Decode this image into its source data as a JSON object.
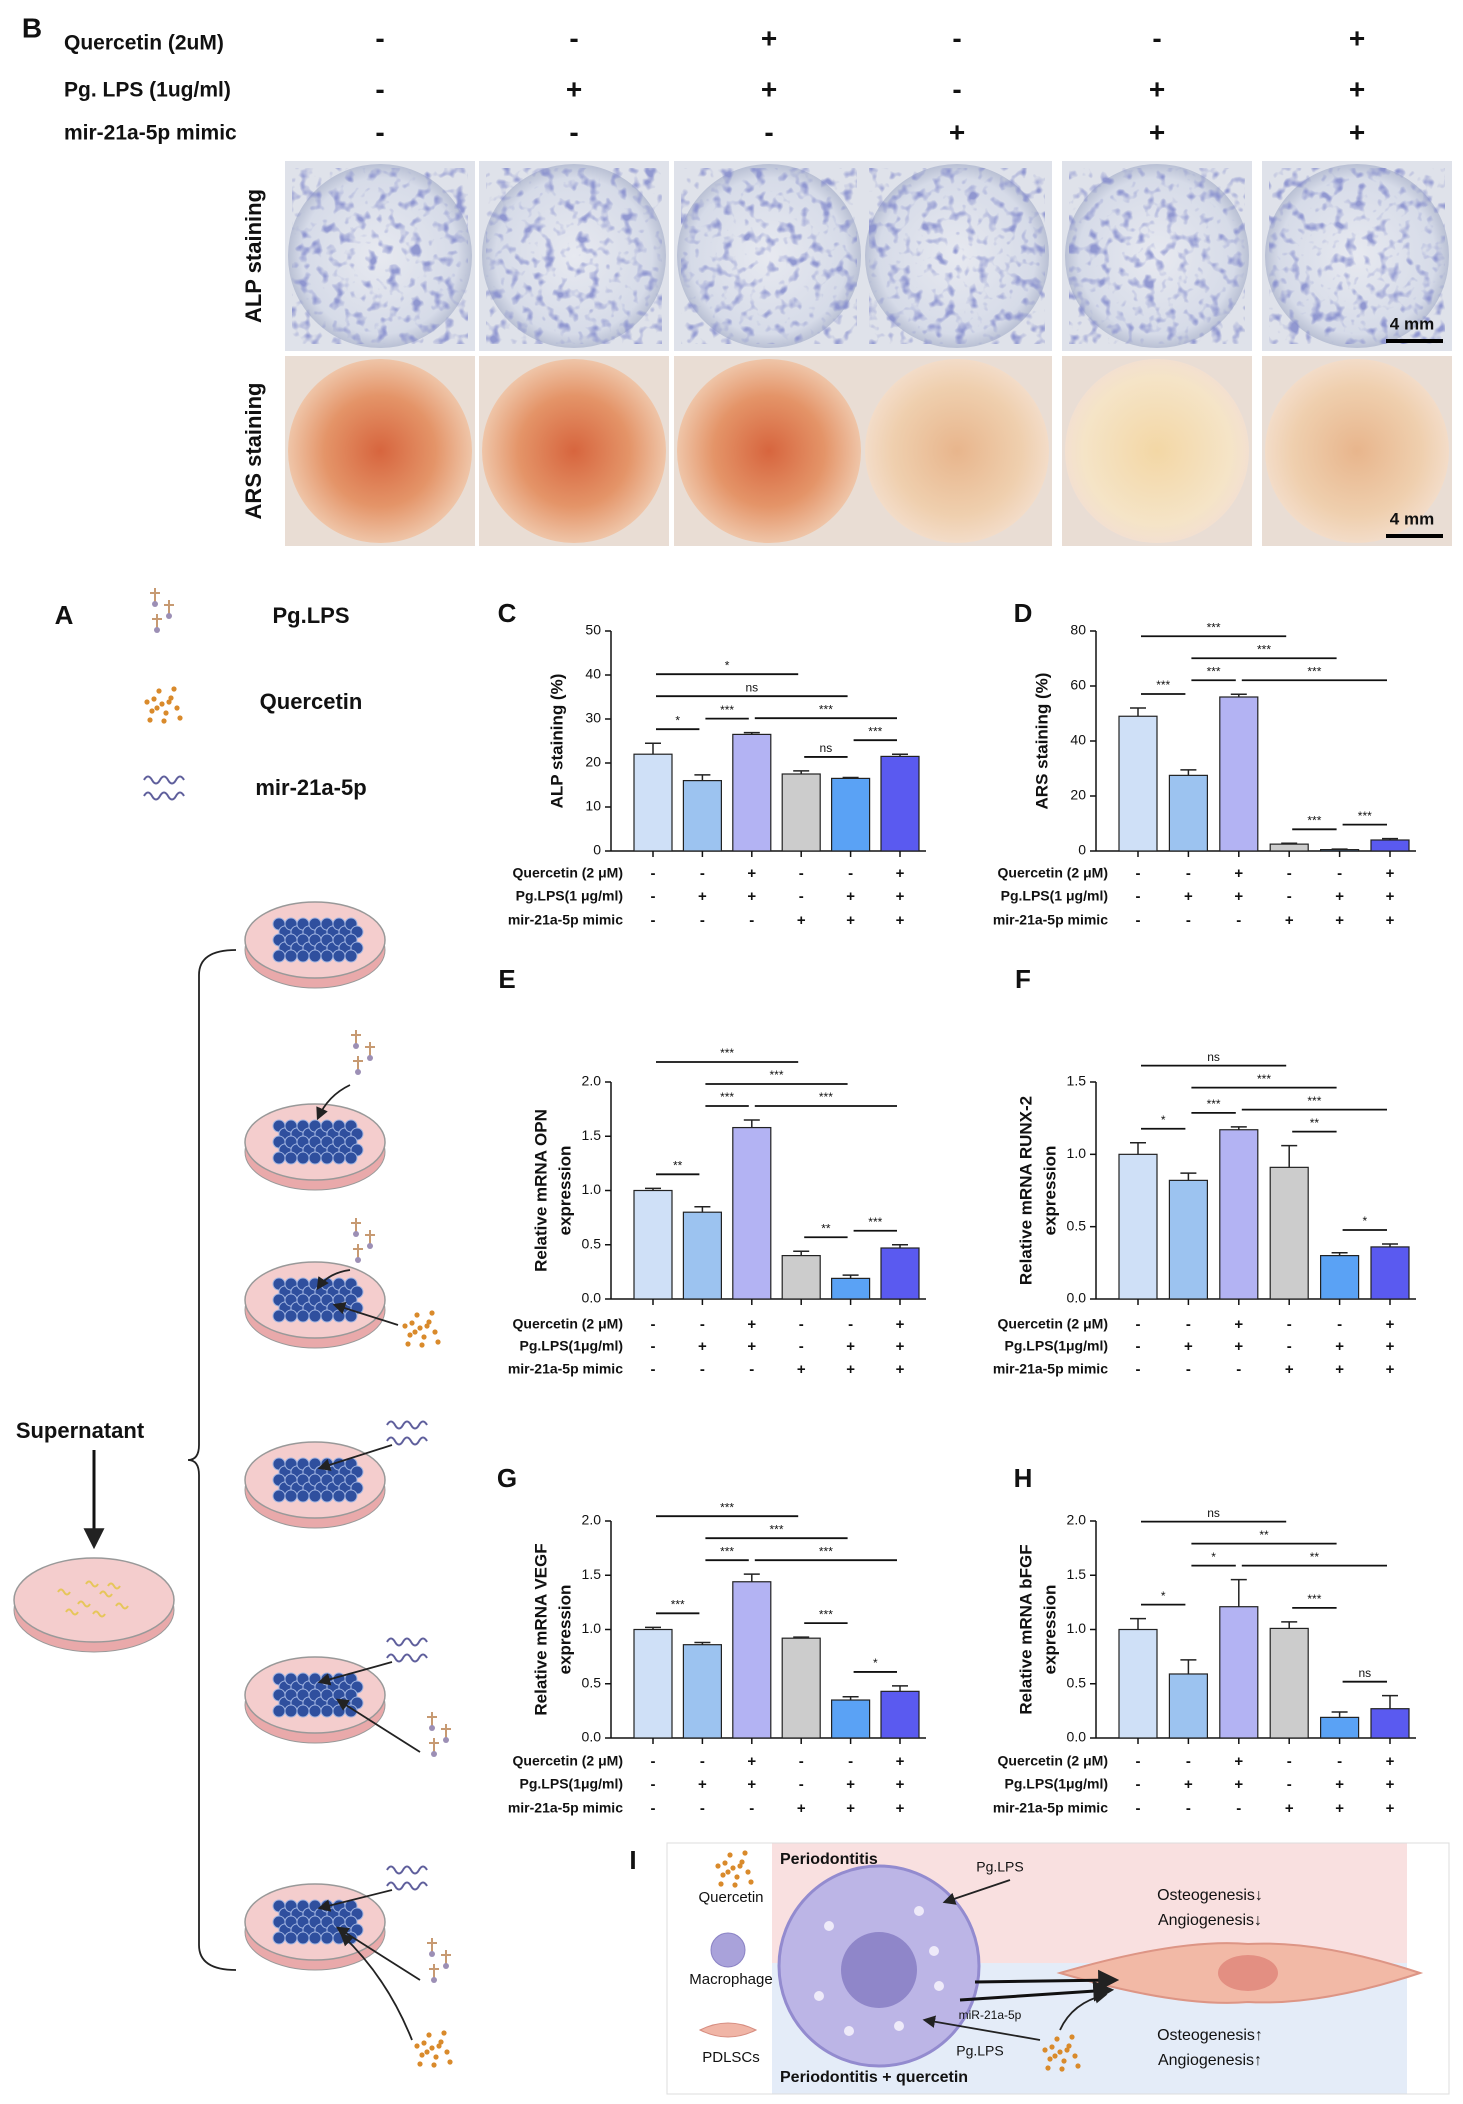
{
  "panel_b": {
    "label": "B",
    "treatments": [
      {
        "label": "Quercetin (2uM)",
        "signs": [
          "-",
          "-",
          "+",
          "-",
          "-",
          "+"
        ]
      },
      {
        "label": "Pg. LPS (1ug/ml)",
        "signs": [
          "-",
          "+",
          "+",
          "-",
          "+",
          "+"
        ]
      },
      {
        "label": "mir-21a-5p mimic",
        "signs": [
          "-",
          "-",
          "-",
          "+",
          "+",
          "+"
        ]
      }
    ],
    "rows": [
      {
        "label": "ALP staining",
        "scale_bar": "4 mm"
      },
      {
        "label": "ARS staining",
        "scale_bar": "4 mm"
      }
    ]
  },
  "panel_a": {
    "label": "A",
    "legend": [
      "Pg.LPS",
      "Quercetin",
      "mir-21a-5p"
    ],
    "supernatant": "Supernatant"
  },
  "panel_i": {
    "label": "I",
    "legend": [
      "Quercetin",
      "Macrophage",
      "PDLSCs"
    ],
    "top_region": "Periodontitis",
    "bottom_region": "Periodontitis + quercetin",
    "arrow_top": "Pg.LPS",
    "arrow_mir": "miR-21a-5p",
    "arrow_bottom": "Pg.LPS",
    "outcome_top": [
      "Osteogenesis↓",
      "Angiogenesis↓"
    ],
    "outcome_bottom": [
      "Osteogenesis↑",
      "Angiogenesis↑"
    ]
  },
  "chart_data": [
    {
      "type": "bar",
      "label": "C",
      "y_label": "ALP staining (%)",
      "values": [
        22,
        16,
        26.5,
        17.5,
        16.5,
        21.5
      ],
      "errors": [
        2.5,
        1.3,
        0.4,
        0.7,
        0.2,
        0.5
      ],
      "colors": [
        "#cfe0f7",
        "#9cc3f0",
        "#b3b3f3",
        "#cccccc",
        "#5aa2f5",
        "#5a5af0"
      ],
      "ylim": [
        0,
        50
      ],
      "yticks": [
        0,
        10,
        20,
        30,
        40,
        50
      ],
      "treatments": [
        {
          "label": "Quercetin (2 μM)",
          "signs": [
            "-",
            "-",
            "+",
            "-",
            "-",
            "+"
          ]
        },
        {
          "label": "Pg.LPS(1 μg/ml)",
          "signs": [
            "-",
            "+",
            "+",
            "-",
            "+",
            "+"
          ]
        },
        {
          "label": "mir-21a-5p mimic",
          "signs": [
            "-",
            "-",
            "-",
            "+",
            "+",
            "+"
          ]
        }
      ],
      "comparisons": [
        {
          "groups": [
            0,
            3
          ],
          "label": "*"
        },
        {
          "groups": [
            0,
            4
          ],
          "label": "ns"
        },
        {
          "groups": [
            0,
            1
          ],
          "label": "*"
        },
        {
          "groups": [
            1,
            2
          ],
          "label": "***"
        },
        {
          "groups": [
            2,
            5
          ],
          "label": "***"
        },
        {
          "groups": [
            3,
            4
          ],
          "label": "ns"
        },
        {
          "groups": [
            4,
            5
          ],
          "label": "***"
        }
      ]
    },
    {
      "type": "bar",
      "label": "D",
      "y_label": "ARS staining (%)",
      "values": [
        49,
        27.5,
        56,
        2.5,
        0.5,
        4
      ],
      "errors": [
        3,
        2,
        1,
        0.3,
        0.2,
        0.5
      ],
      "colors": [
        "#cfe0f7",
        "#9cc3f0",
        "#b3b3f3",
        "#cccccc",
        "#5aa2f5",
        "#5a5af0"
      ],
      "ylim": [
        0,
        80
      ],
      "yticks": [
        0,
        20,
        40,
        60,
        80
      ],
      "treatments": [
        {
          "label": "Quercetin (2 μM)",
          "signs": [
            "-",
            "-",
            "+",
            "-",
            "-",
            "+"
          ]
        },
        {
          "label": "Pg.LPS(1 μg/ml)",
          "signs": [
            "-",
            "+",
            "+",
            "-",
            "+",
            "+"
          ]
        },
        {
          "label": "mir-21a-5p mimic",
          "signs": [
            "-",
            "-",
            "-",
            "+",
            "+",
            "+"
          ]
        }
      ],
      "comparisons": [
        {
          "groups": [
            0,
            3
          ],
          "label": "***"
        },
        {
          "groups": [
            1,
            4
          ],
          "label": "***"
        },
        {
          "groups": [
            0,
            1
          ],
          "label": "***"
        },
        {
          "groups": [
            1,
            2
          ],
          "label": "***"
        },
        {
          "groups": [
            2,
            5
          ],
          "label": "***"
        },
        {
          "groups": [
            3,
            4
          ],
          "label": "***"
        },
        {
          "groups": [
            4,
            5
          ],
          "label": "***"
        }
      ]
    },
    {
      "type": "bar",
      "label": "E",
      "y_label": [
        "Relative mRNA OPN",
        "expression"
      ],
      "values": [
        1.0,
        0.8,
        1.58,
        0.4,
        0.19,
        0.47
      ],
      "errors": [
        0.02,
        0.05,
        0.07,
        0.04,
        0.03,
        0.03
      ],
      "colors": [
        "#cfe0f7",
        "#9cc3f0",
        "#b3b3f3",
        "#cccccc",
        "#5aa2f5",
        "#5a5af0"
      ],
      "ylim": [
        0,
        2
      ],
      "yticks": [
        {
          "value": 0,
          "label": "0.0"
        },
        0.5,
        {
          "value": 1,
          "label": "1.0"
        },
        1.5,
        {
          "value": 2,
          "label": "2.0"
        }
      ],
      "treatments": [
        {
          "label": "Quercetin (2 μM)",
          "signs": [
            "-",
            "-",
            "+",
            "-",
            "-",
            "+"
          ]
        },
        {
          "label": "Pg.LPS(1μg/ml)",
          "signs": [
            "-",
            "+",
            "+",
            "-",
            "+",
            "+"
          ]
        },
        {
          "label": "mir-21a-5p mimic",
          "signs": [
            "-",
            "-",
            "-",
            "+",
            "+",
            "+"
          ]
        }
      ],
      "comparisons": [
        {
          "groups": [
            0,
            3
          ],
          "label": "***"
        },
        {
          "groups": [
            1,
            4
          ],
          "label": "***"
        },
        {
          "groups": [
            0,
            1
          ],
          "label": "**"
        },
        {
          "groups": [
            1,
            2
          ],
          "label": "***"
        },
        {
          "groups": [
            2,
            5
          ],
          "label": "***"
        },
        {
          "groups": [
            3,
            4
          ],
          "label": "**"
        },
        {
          "groups": [
            4,
            5
          ],
          "label": "***"
        }
      ]
    },
    {
      "type": "bar",
      "label": "F",
      "y_label": [
        "Relative mRNA RUNX-2",
        "expression"
      ],
      "values": [
        1.0,
        0.82,
        1.17,
        0.91,
        0.3,
        0.36
      ],
      "errors": [
        0.08,
        0.05,
        0.02,
        0.15,
        0.02,
        0.02
      ],
      "colors": [
        "#cfe0f7",
        "#9cc3f0",
        "#b3b3f3",
        "#cccccc",
        "#5aa2f5",
        "#5a5af0"
      ],
      "ylim": [
        0,
        1.5
      ],
      "yticks": [
        {
          "value": 0,
          "label": "0.0"
        },
        0.5,
        {
          "value": 1,
          "label": "1.0"
        },
        1.5
      ],
      "treatments": [
        {
          "label": "Quercetin (2 μM)",
          "signs": [
            "-",
            "-",
            "+",
            "-",
            "-",
            "+"
          ]
        },
        {
          "label": "Pg.LPS(1μg/ml)",
          "signs": [
            "-",
            "+",
            "+",
            "-",
            "+",
            "+"
          ]
        },
        {
          "label": "mir-21a-5p mimic",
          "signs": [
            "-",
            "-",
            "-",
            "+",
            "+",
            "+"
          ]
        }
      ],
      "comparisons": [
        {
          "groups": [
            0,
            3
          ],
          "label": "ns"
        },
        {
          "groups": [
            1,
            4
          ],
          "label": "***"
        },
        {
          "groups": [
            0,
            1
          ],
          "label": "*"
        },
        {
          "groups": [
            1,
            2
          ],
          "label": "***"
        },
        {
          "groups": [
            2,
            5
          ],
          "label": "***"
        },
        {
          "groups": [
            3,
            4
          ],
          "label": "**"
        },
        {
          "groups": [
            4,
            5
          ],
          "label": "*"
        }
      ]
    },
    {
      "type": "bar",
      "label": "G",
      "y_label": [
        "Relative mRNA VEGF",
        "expression"
      ],
      "values": [
        1.0,
        0.86,
        1.44,
        0.92,
        0.35,
        0.43
      ],
      "errors": [
        0.02,
        0.02,
        0.07,
        0.01,
        0.03,
        0.05
      ],
      "colors": [
        "#cfe0f7",
        "#9cc3f0",
        "#b3b3f3",
        "#cccccc",
        "#5aa2f5",
        "#5a5af0"
      ],
      "ylim": [
        0,
        2
      ],
      "yticks": [
        {
          "value": 0,
          "label": "0.0"
        },
        0.5,
        {
          "value": 1,
          "label": "1.0"
        },
        1.5,
        {
          "value": 2,
          "label": "2.0"
        }
      ],
      "treatments": [
        {
          "label": "Quercetin (2 μM)",
          "signs": [
            "-",
            "-",
            "+",
            "-",
            "-",
            "+"
          ]
        },
        {
          "label": "Pg.LPS(1μg/ml)",
          "signs": [
            "-",
            "+",
            "+",
            "-",
            "+",
            "+"
          ]
        },
        {
          "label": "mir-21a-5p mimic",
          "signs": [
            "-",
            "-",
            "-",
            "+",
            "+",
            "+"
          ]
        }
      ],
      "comparisons": [
        {
          "groups": [
            0,
            3
          ],
          "label": "***"
        },
        {
          "groups": [
            1,
            4
          ],
          "label": "***"
        },
        {
          "groups": [
            0,
            1
          ],
          "label": "***"
        },
        {
          "groups": [
            1,
            2
          ],
          "label": "***"
        },
        {
          "groups": [
            2,
            5
          ],
          "label": "***"
        },
        {
          "groups": [
            3,
            4
          ],
          "label": "***"
        },
        {
          "groups": [
            4,
            5
          ],
          "label": "*"
        }
      ]
    },
    {
      "type": "bar",
      "label": "H",
      "y_label": [
        "Relative mRNA bFGF",
        "expression"
      ],
      "values": [
        1.0,
        0.59,
        1.21,
        1.01,
        0.19,
        0.27
      ],
      "errors": [
        0.1,
        0.13,
        0.25,
        0.06,
        0.05,
        0.12
      ],
      "colors": [
        "#cfe0f7",
        "#9cc3f0",
        "#b3b3f3",
        "#cccccc",
        "#5aa2f5",
        "#5a5af0"
      ],
      "ylim": [
        0,
        2
      ],
      "yticks": [
        {
          "value": 0,
          "label": "0.0"
        },
        0.5,
        {
          "value": 1,
          "label": "1.0"
        },
        1.5,
        {
          "value": 2,
          "label": "2.0"
        }
      ],
      "treatments": [
        {
          "label": "Quercetin (2 μM)",
          "signs": [
            "-",
            "-",
            "+",
            "-",
            "-",
            "+"
          ]
        },
        {
          "label": "Pg.LPS(1μg/ml)",
          "signs": [
            "-",
            "+",
            "+",
            "-",
            "+",
            "+"
          ]
        },
        {
          "label": "mir-21a-5p mimic",
          "signs": [
            "-",
            "-",
            "-",
            "+",
            "+",
            "+"
          ]
        }
      ],
      "comparisons": [
        {
          "groups": [
            0,
            3
          ],
          "label": "ns"
        },
        {
          "groups": [
            1,
            4
          ],
          "label": "**"
        },
        {
          "groups": [
            0,
            1
          ],
          "label": "*"
        },
        {
          "groups": [
            1,
            2
          ],
          "label": "*"
        },
        {
          "groups": [
            2,
            5
          ],
          "label": "**"
        },
        {
          "groups": [
            3,
            4
          ],
          "label": "***"
        },
        {
          "groups": [
            4,
            5
          ],
          "label": "ns"
        }
      ]
    }
  ]
}
